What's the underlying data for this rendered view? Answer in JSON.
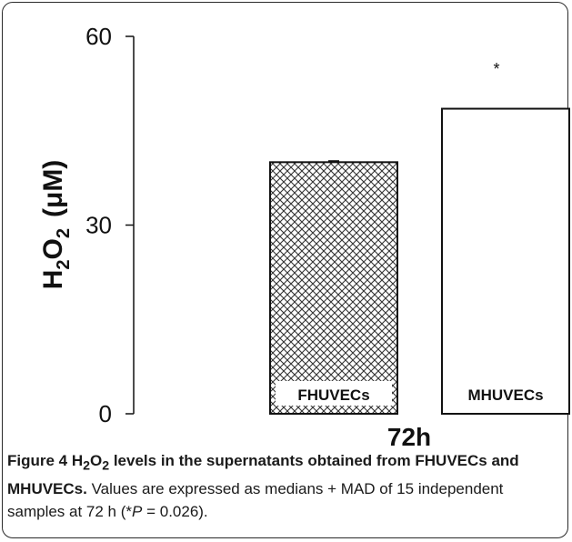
{
  "chart_data": {
    "type": "bar",
    "categories": [
      "FHUVECs",
      "MHUVECs"
    ],
    "values": [
      40,
      48.5
    ],
    "error": [
      0.2,
      0
    ],
    "patterns": [
      "crosshatch",
      "none"
    ],
    "ylim": [
      0,
      60
    ],
    "yticks": [
      0,
      30,
      60
    ],
    "ylabel_parts": {
      "main": "H",
      "sub1": "2",
      "mid": "O",
      "sub2": "2",
      "unit": "(μM)"
    },
    "xlabel": "72h",
    "annotation": "*",
    "grid": false,
    "colors": {
      "bar_fill": "#ffffff",
      "bar_edge": "#111111",
      "hatch": "#333333"
    }
  },
  "caption": {
    "figure_prefix": "Figure 4 H",
    "sub1": "2",
    "mid": "O",
    "sub2": "2",
    "title_rest": " levels in the supernatants obtained from FHUVECs and MHUVECs.",
    "body_a": " Values are expressed as medians + MAD of 15 independent samples at 72 h (*",
    "p_symbol": "P",
    "body_b": " = 0.026)."
  }
}
